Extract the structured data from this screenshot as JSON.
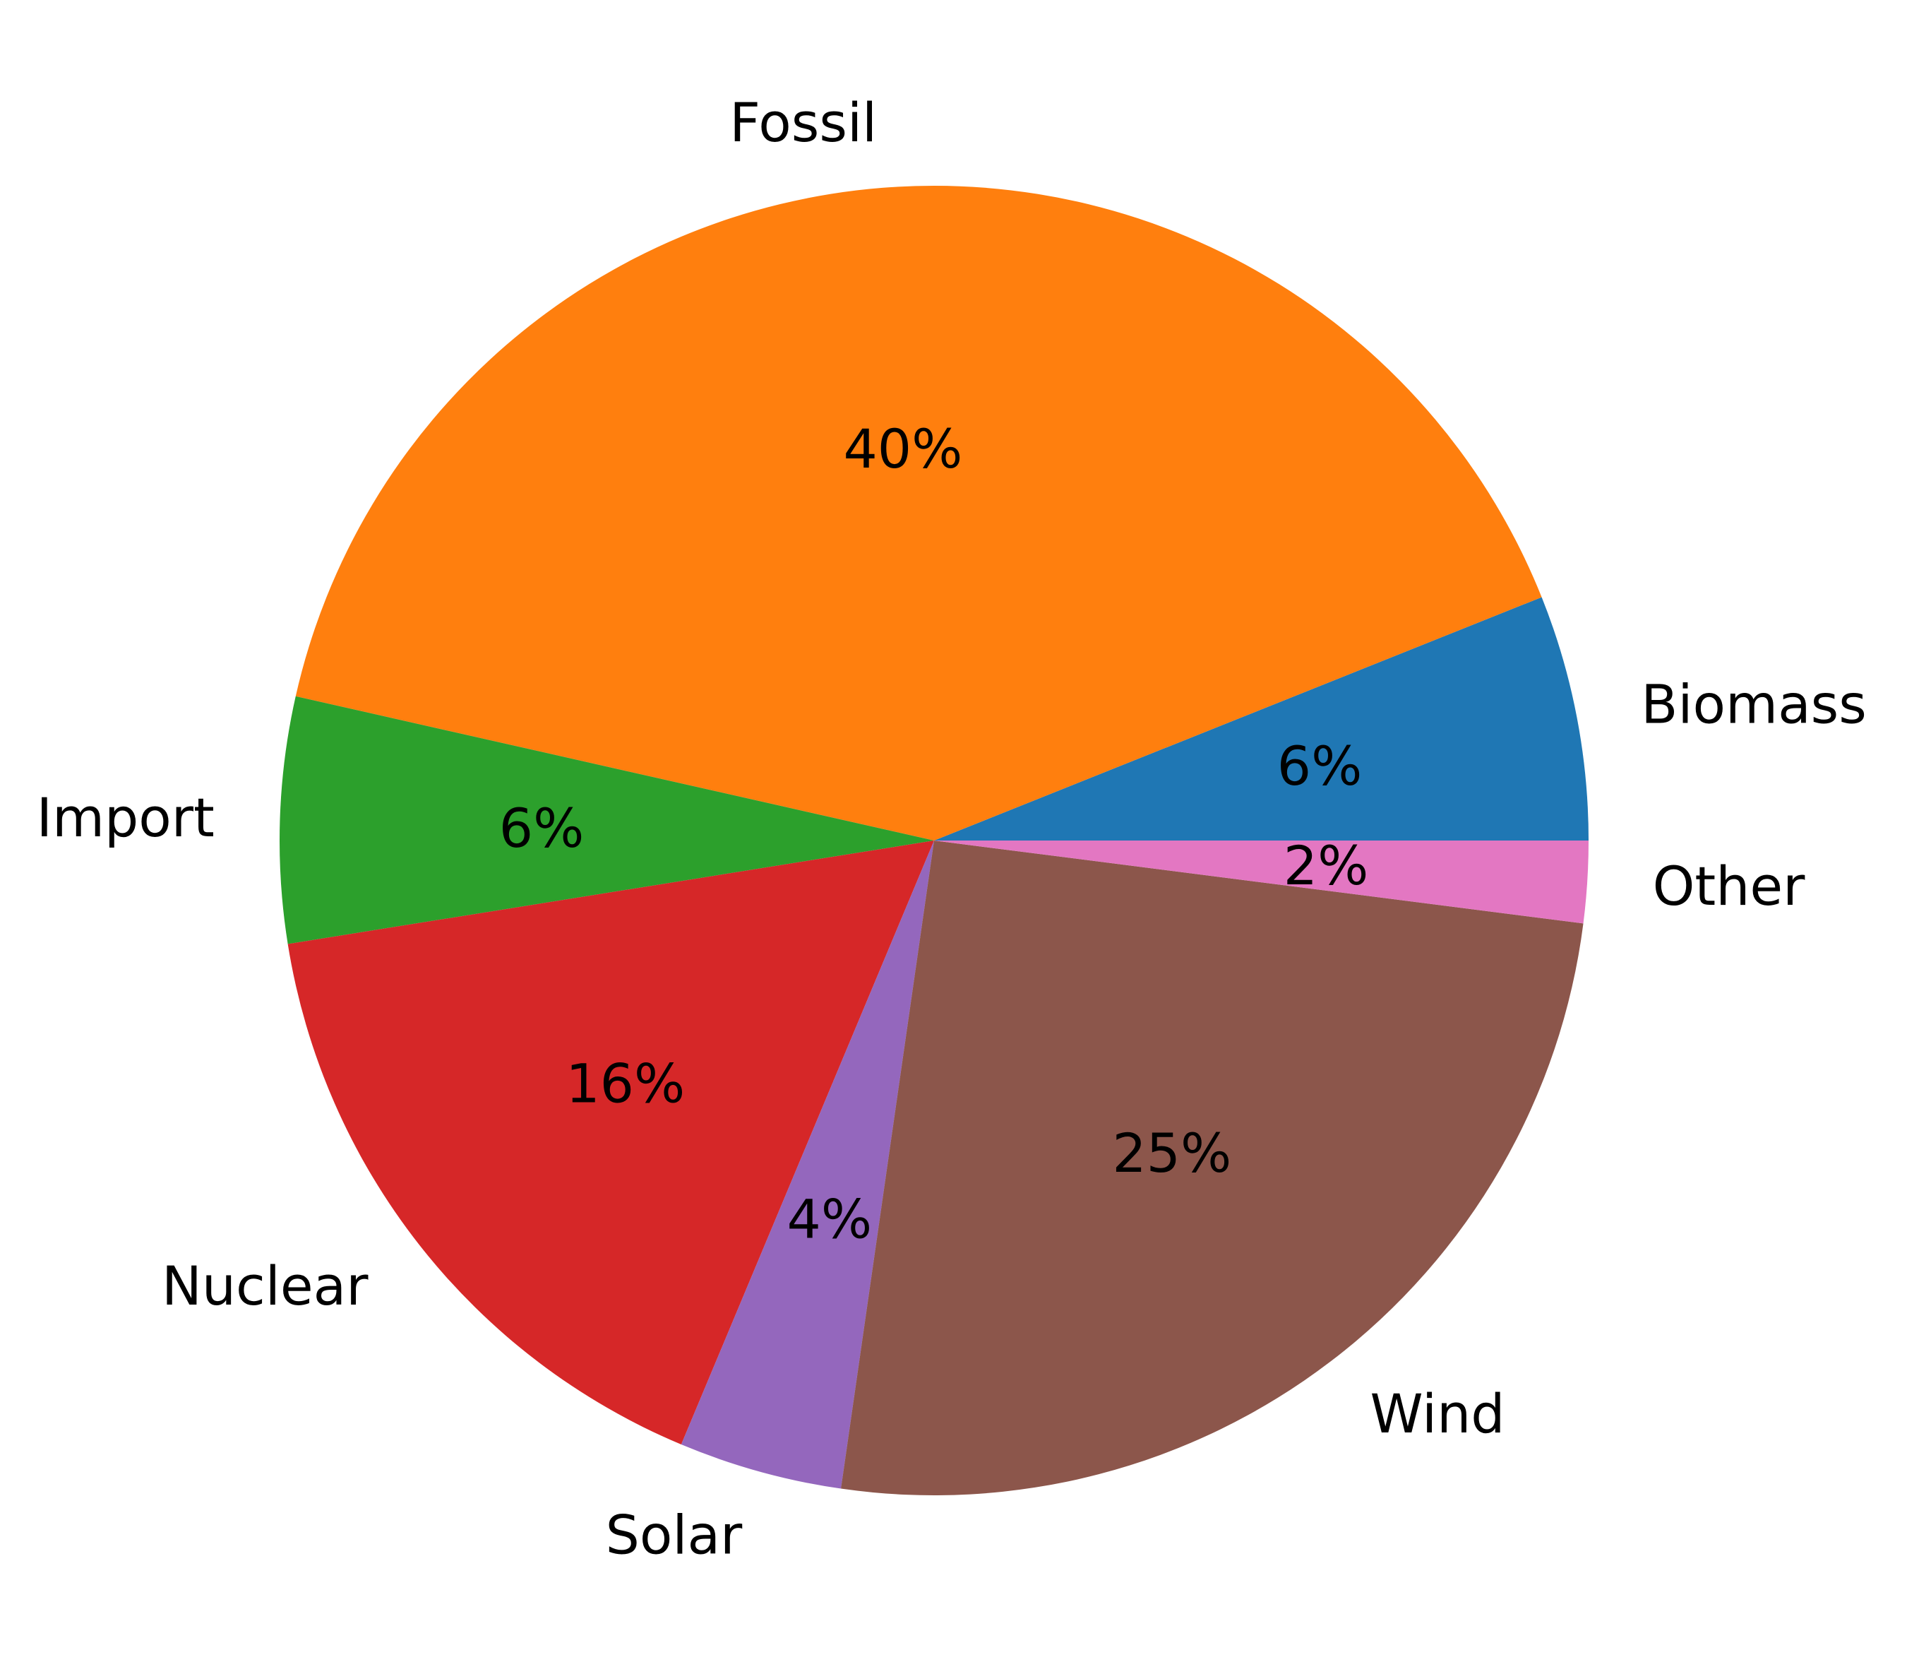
{
  "chart_data": {
    "type": "pie",
    "start_angle_deg": 0,
    "direction": "counterclockwise",
    "slices": [
      {
        "label": "Biomass",
        "value": 6,
        "pct_label": "6%",
        "color": "#1f77b4"
      },
      {
        "label": "Fossil",
        "value": 40,
        "pct_label": "40%",
        "color": "#ff7f0e"
      },
      {
        "label": "Import",
        "value": 6,
        "pct_label": "6%",
        "color": "#2ca02c"
      },
      {
        "label": "Nuclear",
        "value": 16,
        "pct_label": "16%",
        "color": "#d62728"
      },
      {
        "label": "Solar",
        "value": 4,
        "pct_label": "4%",
        "color": "#9467bd"
      },
      {
        "label": "Wind",
        "value": 25,
        "pct_label": "25%",
        "color": "#8c564b"
      },
      {
        "label": "Other",
        "value": 2,
        "pct_label": "2%",
        "color": "#e377c2"
      }
    ]
  }
}
